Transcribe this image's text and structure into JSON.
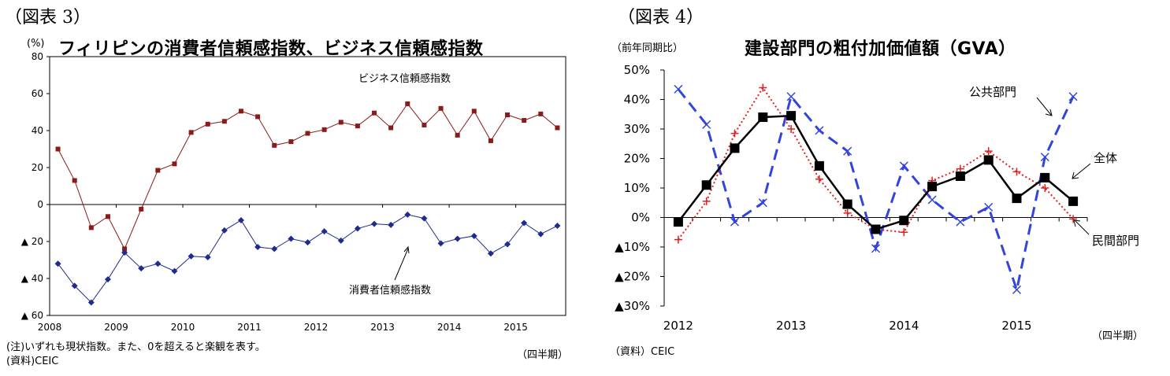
{
  "left": {
    "fig_label": "（図表 3）",
    "title": "フィリピンの消費者信頼感指数、ビジネス信頼感指数",
    "unit": "(%)",
    "note": "(注)いずれも現状指数。また、0を超えると楽観を表す。",
    "source": "(資料)CEIC",
    "period": "（四半期）"
  },
  "right": {
    "fig_label": "（図表 4）",
    "title": "建設部門の粗付加価値額（GVA）",
    "unit": "（前年同期比）",
    "source": "（資料）CEIC",
    "period": "（四半期）"
  },
  "chart_data": [
    {
      "type": "line",
      "title": "フィリピンの消費者信頼感指数、ビジネス信頼感指数",
      "ylabel": "(%)",
      "ylim": [
        -60,
        80
      ],
      "yticks": [
        80,
        60,
        40,
        20,
        0,
        -20,
        -40,
        -60
      ],
      "ytick_labels": [
        "80",
        "60",
        "40",
        "20",
        "0",
        "▲ 20",
        "▲ 40",
        "▲ 60"
      ],
      "xtick_labels": [
        "2008",
        "2009",
        "2010",
        "2011",
        "2012",
        "2013",
        "2014",
        "2015"
      ],
      "x": [
        "2008Q1",
        "2008Q2",
        "2008Q3",
        "2008Q4",
        "2009Q1",
        "2009Q2",
        "2009Q3",
        "2009Q4",
        "2010Q1",
        "2010Q2",
        "2010Q3",
        "2010Q4",
        "2011Q1",
        "2011Q2",
        "2011Q3",
        "2011Q4",
        "2012Q1",
        "2012Q2",
        "2012Q3",
        "2012Q4",
        "2013Q1",
        "2013Q2",
        "2013Q3",
        "2013Q4",
        "2014Q1",
        "2014Q2",
        "2014Q3",
        "2014Q4",
        "2015Q1",
        "2015Q2",
        "2015Q3"
      ],
      "grid": false,
      "series": [
        {
          "name": "ビジネス信頼感指数",
          "color": "#8b1a1a",
          "marker": "square",
          "values": [
            30,
            13,
            -12.5,
            -6.5,
            -24,
            -2.5,
            18.5,
            22,
            39,
            43.5,
            45,
            50.5,
            47.5,
            32,
            34,
            38.5,
            40.5,
            44.5,
            42.5,
            49.5,
            41.5,
            54.5,
            43,
            52,
            37.5,
            50.5,
            34.5,
            48.5,
            45.5,
            49,
            41.5
          ]
        },
        {
          "name": "消費者信頼感指数",
          "color": "#1f2b8f",
          "marker": "diamond",
          "values": [
            -32,
            -44,
            -53,
            -40.5,
            -26,
            -34.5,
            -32,
            -36,
            -28,
            -28.5,
            -14,
            -8.5,
            -23,
            -24,
            -18.5,
            -20.5,
            -14.5,
            -19.5,
            -13,
            -10.5,
            -11,
            -5.5,
            -7.5,
            -21,
            -18.5,
            -17,
            -26.5,
            -21.5,
            -10,
            -16,
            -11.5
          ]
        }
      ],
      "annotations": [
        "ビジネス信頼感指数",
        "消費者信頼感指数"
      ]
    },
    {
      "type": "line",
      "title": "建設部門の粗付加価値額（GVA）",
      "ylabel": "（前年同期比）",
      "ylim": [
        -30,
        50
      ],
      "yticks": [
        50,
        40,
        30,
        20,
        10,
        0,
        -10,
        -20,
        -30
      ],
      "ytick_labels": [
        "50%",
        "40%",
        "30%",
        "20%",
        "10%",
        "0%",
        "▲10%",
        "▲20%",
        "▲30%"
      ],
      "xtick_labels": [
        "2012",
        "2013",
        "2014",
        "2015"
      ],
      "x": [
        "2012Q1",
        "2012Q2",
        "2012Q3",
        "2012Q4",
        "2013Q1",
        "2013Q2",
        "2013Q3",
        "2013Q4",
        "2014Q1",
        "2014Q2",
        "2014Q3",
        "2014Q4",
        "2015Q1",
        "2015Q2",
        "2015Q3"
      ],
      "grid": false,
      "series": [
        {
          "name": "全体",
          "color": "#000000",
          "marker": "square",
          "values": [
            -1.5,
            11,
            23.5,
            34,
            34.5,
            17.5,
            4.5,
            -4,
            -1,
            10.5,
            14,
            19.5,
            6.5,
            13.5,
            5.5
          ]
        },
        {
          "name": "公共部門",
          "color": "#3344dd",
          "marker": "x",
          "values": [
            43.5,
            31.5,
            -1.5,
            5,
            41,
            29.5,
            22.5,
            -10.5,
            17.5,
            6,
            -1.5,
            3.5,
            -24.5,
            20.5,
            41
          ]
        },
        {
          "name": "民間部門",
          "color": "#e02020",
          "marker": "plus",
          "values": [
            -7.5,
            5.5,
            28.5,
            44,
            30,
            13,
            1.5,
            -4,
            -5,
            12.5,
            16.5,
            22.5,
            15.5,
            10,
            -0.5
          ]
        }
      ],
      "annotations": [
        "公共部門",
        "全体",
        "民間部門"
      ]
    }
  ]
}
